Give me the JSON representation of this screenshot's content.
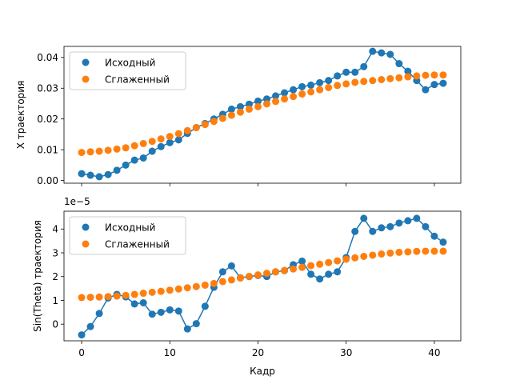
{
  "colors": {
    "original": "#1f77b4",
    "smoothed": "#ff7f0e"
  },
  "chart_data": [
    {
      "type": "line",
      "ylabel": "X траектория",
      "xlabel": "",
      "xlim": [
        -2,
        43
      ],
      "ylim": [
        -0.0009,
        0.0436
      ],
      "yticks": [
        "0.00",
        "0.01",
        "0.02",
        "0.03",
        "0.04"
      ],
      "ytick_values": [
        0,
        0.01,
        0.02,
        0.03,
        0.04
      ],
      "xticks": [
        0,
        10,
        20,
        30,
        40
      ],
      "show_xtick_labels": false,
      "offset_label": "",
      "legend": {
        "position": "upper-left",
        "entries": [
          "Исходный",
          "Сглаженный"
        ]
      },
      "x": [
        0,
        1,
        2,
        3,
        4,
        5,
        6,
        7,
        8,
        9,
        10,
        11,
        12,
        13,
        14,
        15,
        16,
        17,
        18,
        19,
        20,
        21,
        22,
        23,
        24,
        25,
        26,
        27,
        28,
        29,
        30,
        31,
        32,
        33,
        34,
        35,
        36,
        37,
        38,
        39,
        40,
        41
      ],
      "series": [
        {
          "name": "Исходный",
          "line": true,
          "values": [
            0.0022,
            0.0017,
            0.0012,
            0.0019,
            0.0033,
            0.005,
            0.0066,
            0.0073,
            0.0095,
            0.011,
            0.0123,
            0.0132,
            0.0153,
            0.0172,
            0.0185,
            0.02,
            0.0215,
            0.0232,
            0.024,
            0.0248,
            0.0258,
            0.0265,
            0.0275,
            0.0285,
            0.0295,
            0.0305,
            0.031,
            0.0318,
            0.0325,
            0.034,
            0.0352,
            0.0352,
            0.037,
            0.042,
            0.0415,
            0.041,
            0.038,
            0.0355,
            0.0325,
            0.0295,
            0.0312,
            0.0316
          ]
        },
        {
          "name": "Сглаженный",
          "line": false,
          "values": [
            0.0091,
            0.0093,
            0.0095,
            0.0098,
            0.0102,
            0.0106,
            0.0113,
            0.012,
            0.0127,
            0.0135,
            0.0143,
            0.0152,
            0.0162,
            0.0172,
            0.0182,
            0.0192,
            0.0202,
            0.0212,
            0.0222,
            0.0232,
            0.024,
            0.0249,
            0.0257,
            0.0265,
            0.0273,
            0.0281,
            0.0288,
            0.0295,
            0.0302,
            0.0309,
            0.0314,
            0.0319,
            0.0322,
            0.0325,
            0.0328,
            0.0331,
            0.0334,
            0.0337,
            0.034,
            0.0342,
            0.0343,
            0.0343
          ]
        }
      ]
    },
    {
      "type": "line",
      "ylabel": "Sin(Theta) траектория",
      "xlabel": "Кадр",
      "xlim": [
        -2,
        43
      ],
      "ylim": [
        -0.7,
        4.75
      ],
      "yticks": [
        "0",
        "1",
        "2",
        "3",
        "4"
      ],
      "ytick_values": [
        0,
        1,
        2,
        3,
        4
      ],
      "xticks": [
        0,
        10,
        20,
        30,
        40
      ],
      "show_xtick_labels": true,
      "offset_label": "1e−5",
      "legend": {
        "position": "upper-left",
        "entries": [
          "Исходный",
          "Сглаженный"
        ]
      },
      "x": [
        0,
        1,
        2,
        3,
        4,
        5,
        6,
        7,
        8,
        9,
        10,
        11,
        12,
        13,
        14,
        15,
        16,
        17,
        18,
        19,
        20,
        21,
        22,
        23,
        24,
        25,
        26,
        27,
        28,
        29,
        30,
        31,
        32,
        33,
        34,
        35,
        36,
        37,
        38,
        39,
        40,
        41
      ],
      "series": [
        {
          "name": "Исходный",
          "line": true,
          "values": [
            -0.45,
            -0.1,
            0.45,
            1.1,
            1.25,
            1.15,
            0.85,
            0.9,
            0.42,
            0.5,
            0.6,
            0.55,
            -0.2,
            0.02,
            0.75,
            1.55,
            2.2,
            2.45,
            1.95,
            2.0,
            2.05,
            2.0,
            2.2,
            2.25,
            2.5,
            2.65,
            2.1,
            1.9,
            2.1,
            2.2,
            2.8,
            3.9,
            4.45,
            3.9,
            4.05,
            4.1,
            4.25,
            4.35,
            4.45,
            4.1,
            3.7,
            3.45
          ]
        },
        {
          "name": "Сглаженный",
          "line": false,
          "values": [
            1.12,
            1.13,
            1.14,
            1.16,
            1.18,
            1.21,
            1.25,
            1.3,
            1.34,
            1.38,
            1.43,
            1.48,
            1.53,
            1.58,
            1.64,
            1.71,
            1.79,
            1.86,
            1.94,
            2.01,
            2.07,
            2.14,
            2.2,
            2.26,
            2.32,
            2.39,
            2.46,
            2.52,
            2.59,
            2.66,
            2.73,
            2.79,
            2.85,
            2.9,
            2.95,
            2.99,
            3.02,
            3.04,
            3.06,
            3.07,
            3.07,
            3.07
          ]
        }
      ]
    }
  ]
}
